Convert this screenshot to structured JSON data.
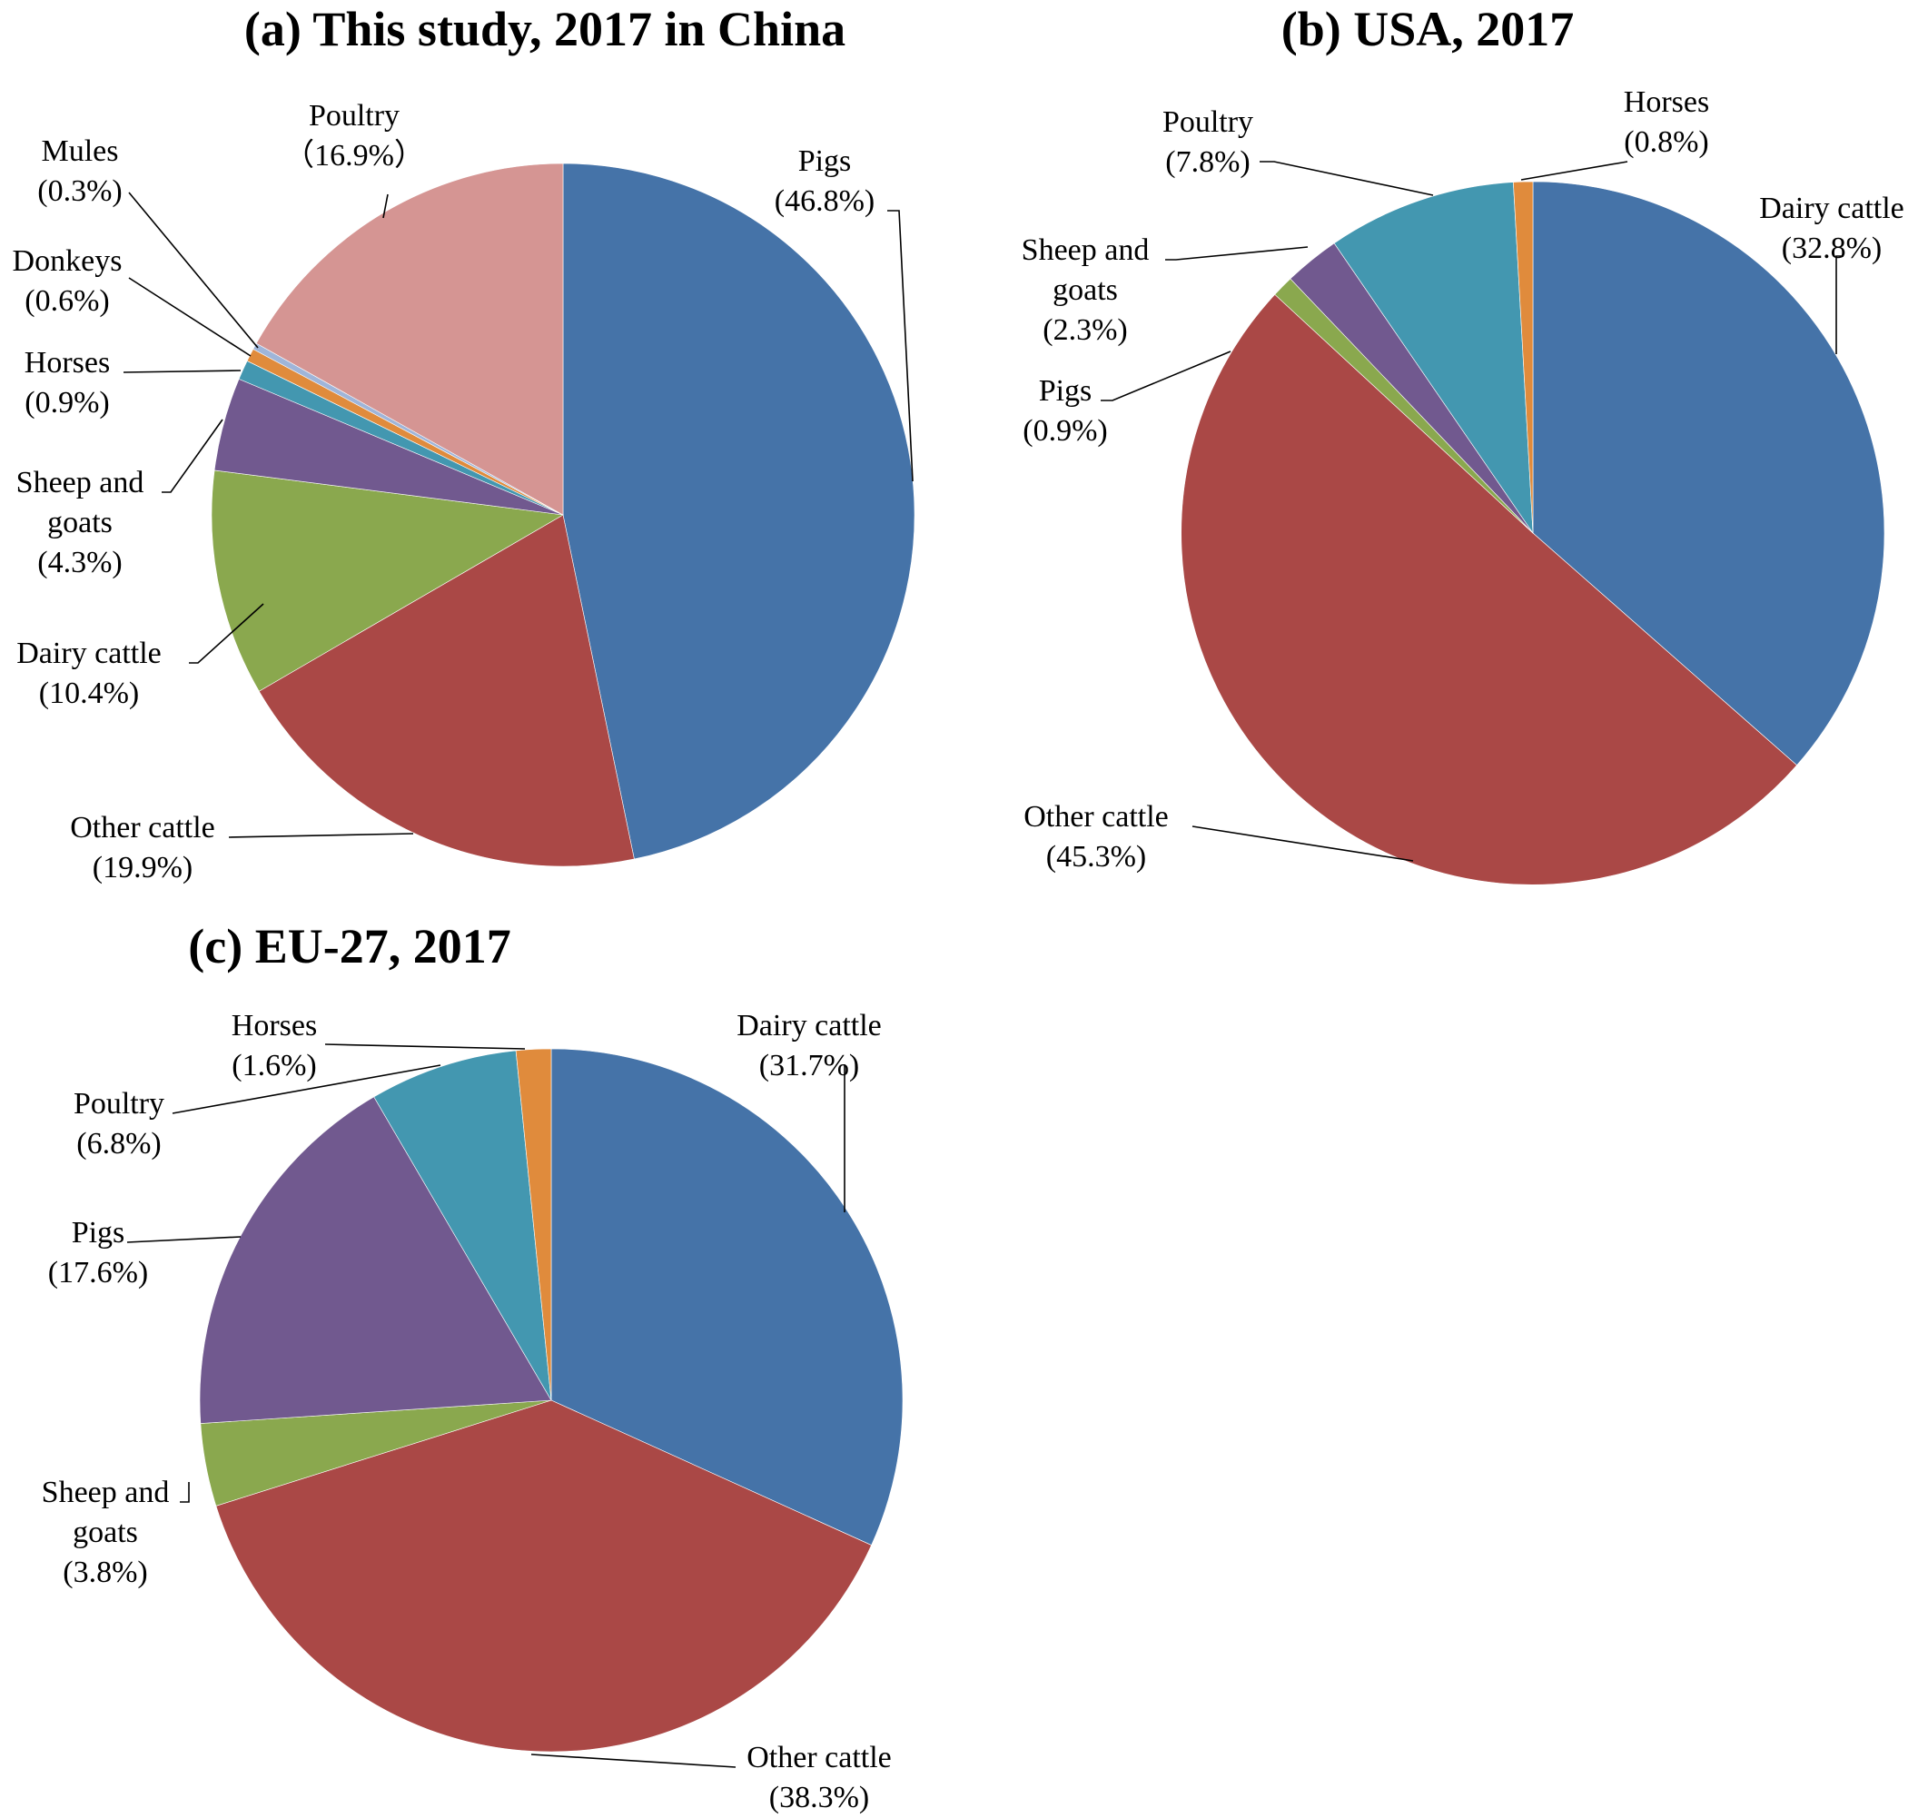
{
  "chart_data": [
    {
      "type": "pie",
      "title": "(a) This study, 2017 in China",
      "slices": [
        {
          "name": "Pigs",
          "value": 46.8,
          "label": "(46.8%)",
          "color": "#4573a8"
        },
        {
          "name": "Other cattle",
          "value": 19.9,
          "label": "(19.9%)",
          "color": "#aa4846"
        },
        {
          "name": "Dairy cattle",
          "value": 10.4,
          "label": "(10.4%)",
          "color": "#8aa84e"
        },
        {
          "name": "Sheep and goats",
          "value": 4.3,
          "label": "(4.3%)",
          "color": "#71598f"
        },
        {
          "name": "Horses",
          "value": 0.9,
          "label": "(0.9%)",
          "color": "#4397b0"
        },
        {
          "name": "Donkeys",
          "value": 0.6,
          "label": "(0.6%)",
          "color": "#e08b3c"
        },
        {
          "name": "Mules",
          "value": 0.3,
          "label": "(0.3%)",
          "color": "#9fb5d9"
        },
        {
          "name": "Poultry",
          "value": 16.9,
          "label": "（16.9%）",
          "color": "#d59593"
        }
      ]
    },
    {
      "type": "pie",
      "title": "(b) USA, 2017",
      "slices": [
        {
          "name": "Dairy cattle",
          "value": 32.8,
          "label": "(32.8%)",
          "color": "#4573a8"
        },
        {
          "name": "Other cattle",
          "value": 45.3,
          "label": "(45.3%)",
          "color": "#aa4846"
        },
        {
          "name": "Pigs",
          "value": 0.9,
          "label": "(0.9%)",
          "color": "#8aa84e"
        },
        {
          "name": "Sheep and goats",
          "value": 2.3,
          "label": "(2.3%)",
          "color": "#71598f"
        },
        {
          "name": "Poultry",
          "value": 7.8,
          "label": "(7.8%)",
          "color": "#4397b0"
        },
        {
          "name": "Horses",
          "value": 0.8,
          "label": "(0.8%)",
          "color": "#e08b3c"
        }
      ]
    },
    {
      "type": "pie",
      "title": "(c) EU-27, 2017",
      "slices": [
        {
          "name": "Dairy cattle",
          "value": 31.7,
          "label": "(31.7%)",
          "color": "#4573a8"
        },
        {
          "name": "Other cattle",
          "value": 38.3,
          "label": "(38.3%)",
          "color": "#aa4846"
        },
        {
          "name": "Sheep and goats",
          "value": 3.8,
          "label": "(3.8%)",
          "color": "#8aa84e"
        },
        {
          "name": "Pigs",
          "value": 17.6,
          "label": "(17.6%)",
          "color": "#71598f"
        },
        {
          "name": "Poultry",
          "value": 6.8,
          "label": "(6.8%)",
          "color": "#4397b0"
        },
        {
          "name": "Horses",
          "value": 1.6,
          "label": "(1.6%)",
          "color": "#e08b3c"
        }
      ]
    }
  ]
}
